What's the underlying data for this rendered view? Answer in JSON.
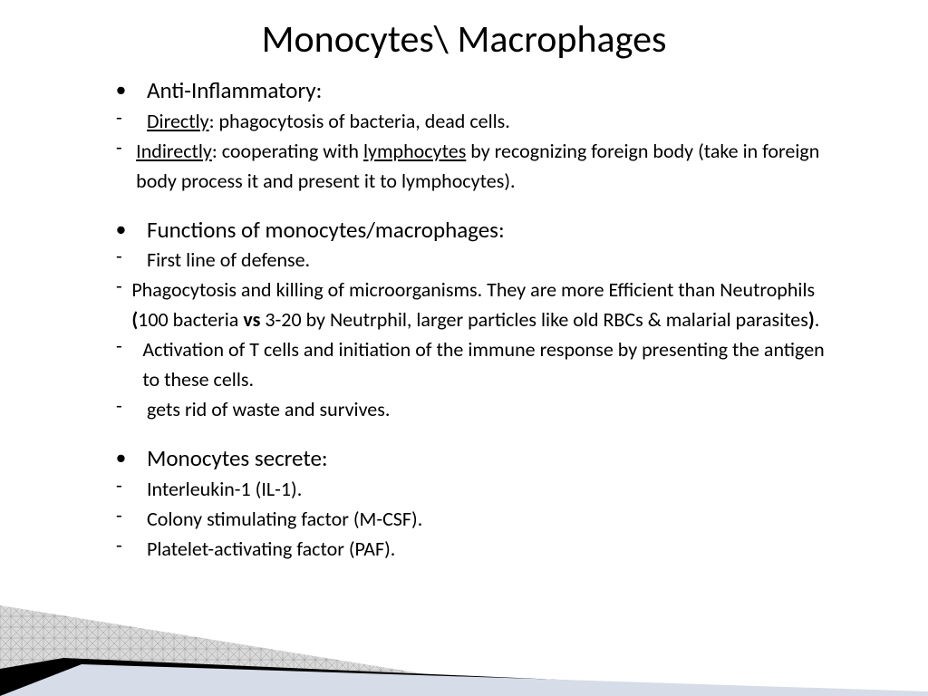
{
  "title": "Monocytes\\ Macrophages",
  "sections": [
    {
      "heading": "Anti-Inflammatory:",
      "items": [
        {
          "segments": [
            {
              "t": "Directly",
              "u": true
            },
            {
              "t": ": phagocytosis of bacteria, dead cells."
            }
          ]
        },
        {
          "segments": [
            {
              "t": "Indirectly",
              "u": true
            },
            {
              "t": ": cooperating with "
            },
            {
              "t": "lymphocytes",
              "u": true
            },
            {
              "t": " by recognizing foreign body (take in foreign body process it and present it to lymphocytes)."
            }
          ]
        }
      ]
    },
    {
      "heading": "Functions of monocytes/macrophages:",
      "items": [
        {
          "segments": [
            {
              "t": "First line of defense."
            }
          ]
        },
        {
          "segments": [
            {
              "t": "Phagocytosis and killing of microorganisms. They are more Efficient than Neutrophils "
            },
            {
              "t": "(",
              "b": true
            },
            {
              "t": "100 bacteria "
            },
            {
              "t": "vs",
              "b": true
            },
            {
              "t": " 3-20 by Neutrphil, larger particles like old RBCs & malarial parasites"
            },
            {
              "t": ")",
              "b": true
            },
            {
              "t": "."
            }
          ]
        },
        {
          "segments": [
            {
              "t": "Activation of T cells and initiation of the immune response by presenting the antigen to these cells."
            }
          ]
        },
        {
          "segments": [
            {
              "t": "gets rid of waste and survives."
            }
          ]
        }
      ]
    },
    {
      "heading": "Monocytes secrete:",
      "items": [
        {
          "segments": [
            {
              "t": "Interleukin-1 (IL-1)."
            }
          ]
        },
        {
          "segments": [
            {
              "t": "Colony stimulating factor (M-CSF)."
            }
          ]
        },
        {
          "segments": [
            {
              "t": "Platelet-activating factor (PAF)."
            }
          ]
        }
      ]
    }
  ],
  "style": {
    "background_color": "#ffffff",
    "text_color": "#000000",
    "title_fontsize": 42,
    "heading_fontsize": 25,
    "body_fontsize": 22,
    "deco": {
      "grid_fill": "#d9d9d9",
      "grid_line": "#9a9a9a",
      "black": "#000000",
      "light_blue": "#d6dde8"
    }
  }
}
